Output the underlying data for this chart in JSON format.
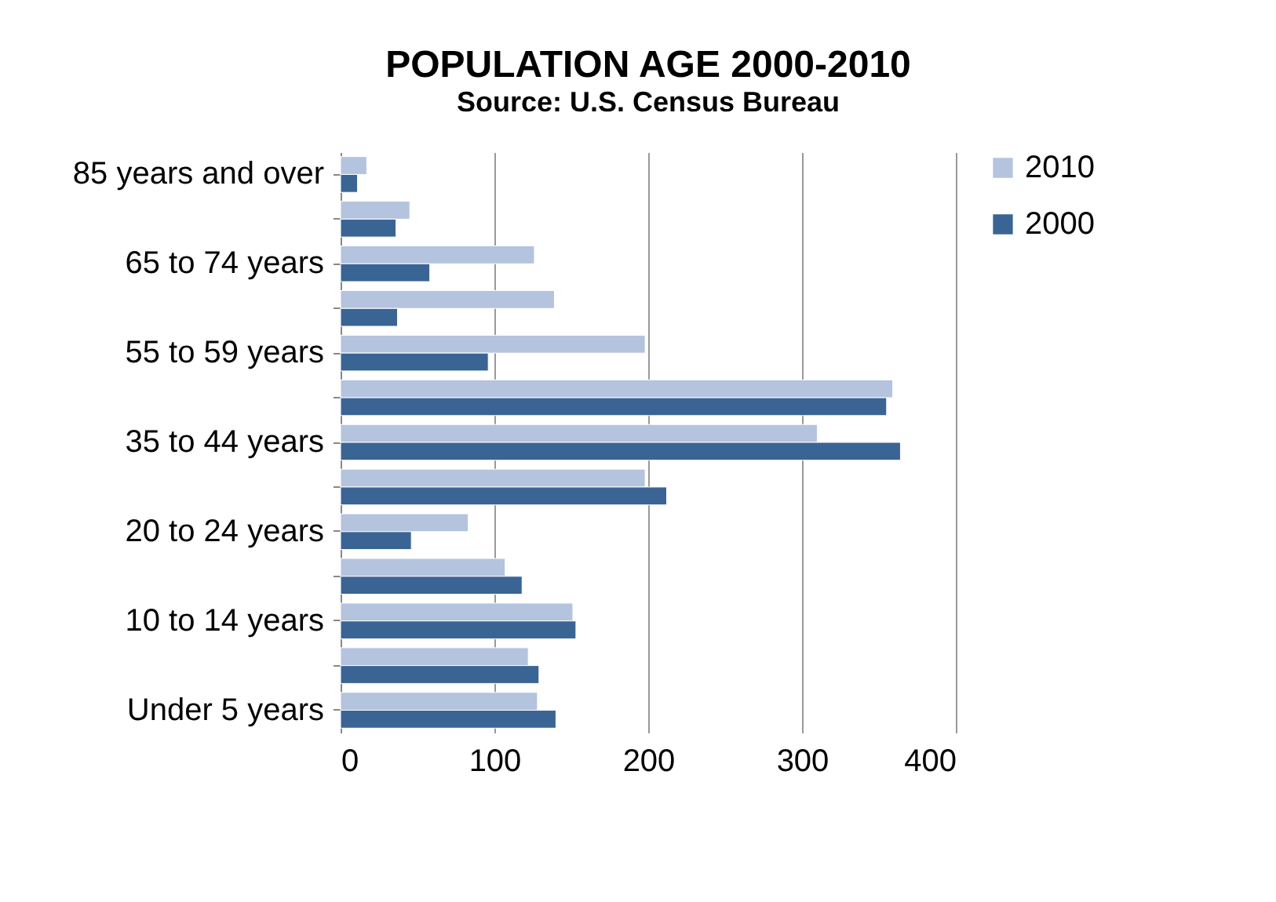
{
  "chart_data": {
    "type": "bar",
    "orientation": "horizontal",
    "title": "POPULATION AGE 2000-2010",
    "subtitle": "Source: U.S. Census Bureau",
    "categories": [
      "85 years and over",
      null,
      "65 to 74 years",
      null,
      "55 to 59 years",
      null,
      "35 to 44 years",
      null,
      "20 to 24 years",
      null,
      "10 to 14 years",
      null,
      "Under 5 years"
    ],
    "series": [
      {
        "name": "2010",
        "color": "#b4c3de",
        "values": [
          17,
          45,
          126,
          139,
          198,
          359,
          310,
          198,
          83,
          107,
          151,
          122,
          128
        ]
      },
      {
        "name": "2000",
        "color": "#3a6494",
        "values": [
          11,
          36,
          58,
          37,
          96,
          355,
          364,
          212,
          46,
          118,
          153,
          129,
          140
        ]
      }
    ],
    "xlim": [
      0,
      400
    ],
    "xticks": [
      0,
      100,
      200,
      300,
      400
    ],
    "grid": "x",
    "legend": "right"
  }
}
